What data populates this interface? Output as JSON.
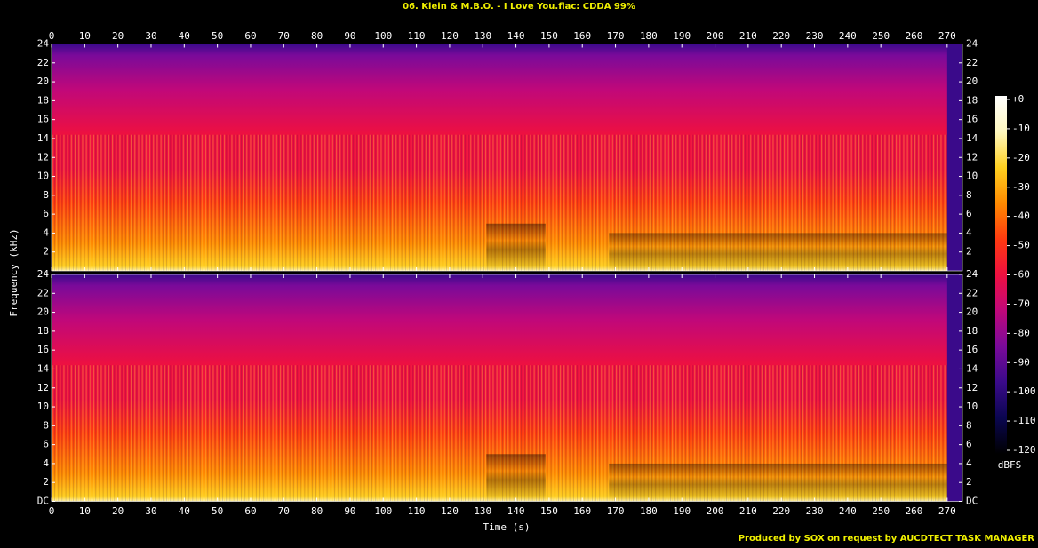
{
  "chart_data": {
    "type": "spectrogram",
    "title": "06. Klein & M.B.O. - I Love You.flac: CDDA 99%",
    "xlabel": "Time (s)",
    "ylabel": "Frequency (kHz)",
    "credit": "Produced by SOX on request by AUCDTECT TASK MANAGER",
    "xlim": [
      0,
      274.6
    ],
    "xticks": [
      0,
      10,
      20,
      30,
      40,
      50,
      60,
      70,
      80,
      90,
      100,
      110,
      120,
      130,
      140,
      150,
      160,
      170,
      180,
      190,
      200,
      210,
      220,
      230,
      240,
      250,
      260,
      270
    ],
    "ylim": [
      0,
      24
    ],
    "panels": [
      {
        "yticks": [
          2,
          4,
          6,
          8,
          10,
          12,
          14,
          16,
          18,
          20,
          22,
          24
        ]
      },
      {
        "yticks": [
          {
            "value": 0,
            "label": "DC"
          },
          2,
          4,
          6,
          8,
          10,
          12,
          14,
          16,
          18,
          20,
          22,
          24
        ]
      }
    ],
    "colorbar": {
      "label": "dBFS",
      "lim": [
        -120,
        0
      ],
      "ticks": [
        {
          "value": 0,
          "label": "+0"
        },
        -10,
        -20,
        -30,
        -40,
        -50,
        -60,
        -70,
        -80,
        -90,
        -100,
        -110,
        -120
      ],
      "colors": [
        "#000000",
        "#0a0650",
        "#3a0a8a",
        "#7a0a9a",
        "#c0087a",
        "#ee1040",
        "#ff3a10",
        "#ff8a00",
        "#ffd020",
        "#fff8c0",
        "#ffffff"
      ]
    }
  }
}
